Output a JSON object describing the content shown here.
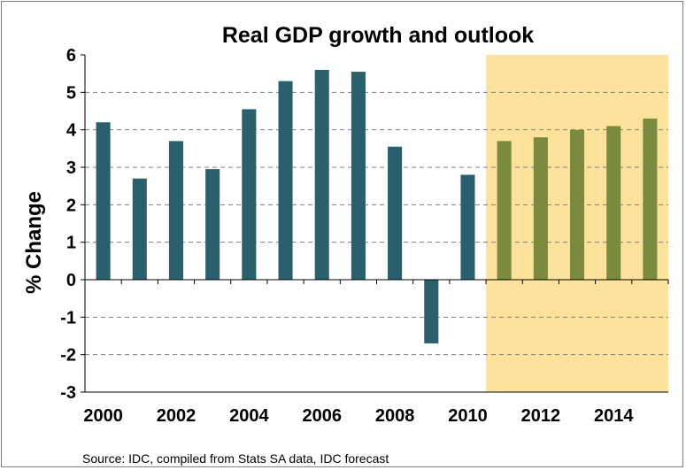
{
  "chart_data": {
    "type": "bar",
    "title": "Real GDP growth and outlook",
    "xlabel": "",
    "ylabel": "% Change",
    "categories": [
      "2000",
      "2001",
      "2002",
      "2003",
      "2004",
      "2005",
      "2006",
      "2007",
      "2008",
      "2009",
      "2010",
      "2011",
      "2012",
      "2013",
      "2014",
      "2015"
    ],
    "x_tick_labels": [
      "2000",
      "",
      "2002",
      "",
      "2004",
      "",
      "2006",
      "",
      "2008",
      "",
      "2010",
      "",
      "2012",
      "",
      "2014",
      ""
    ],
    "values": [
      4.2,
      2.7,
      3.7,
      2.95,
      4.55,
      5.3,
      5.6,
      5.55,
      3.55,
      -1.7,
      2.8,
      3.7,
      3.8,
      4.0,
      4.1,
      4.3
    ],
    "forecast_start_index": 11,
    "ylim": [
      -3,
      6
    ],
    "yticks": [
      6,
      5,
      4,
      3,
      2,
      1,
      0,
      -1,
      -2,
      -3
    ],
    "grid": "horizontal dashed",
    "colors": {
      "actual": "#2a5f6e",
      "forecast": "#7a8a3e",
      "forecast_background": "#fde29b"
    },
    "source": "Source: IDC, compiled from Stats SA data, IDC forecast"
  }
}
